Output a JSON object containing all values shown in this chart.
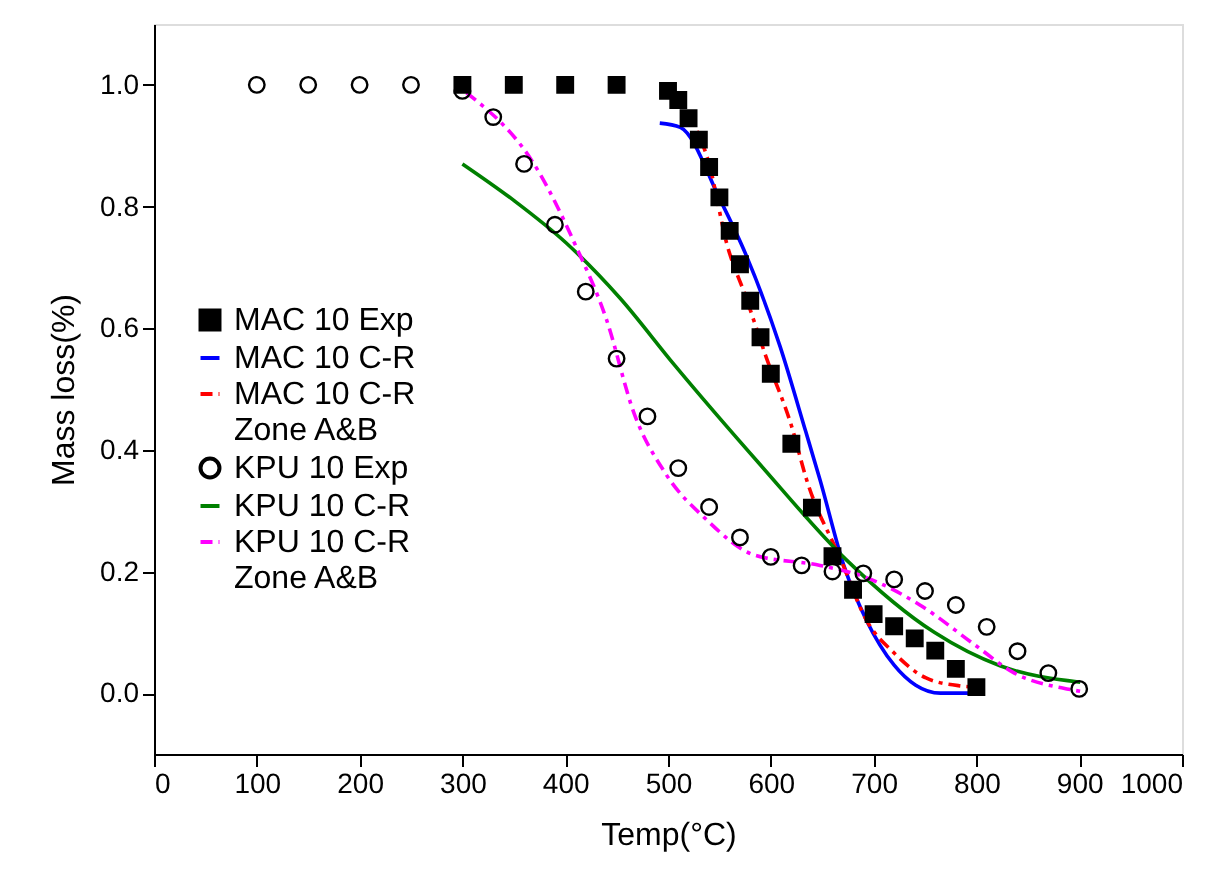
{
  "chart_data": {
    "type": "scatter",
    "xlabel": "Temp(°C)",
    "ylabel": "Mass loss(%)",
    "xlim": [
      0,
      1000
    ],
    "xticks": [
      0,
      100,
      200,
      300,
      400,
      500,
      600,
      700,
      800,
      900,
      1000
    ],
    "ylim": [
      -0.1,
      1.1
    ],
    "yticks": [
      {
        "value": 0,
        "label": "0.0"
      },
      {
        "value": 0.2,
        "label": "0.2"
      },
      {
        "value": 0.4,
        "label": "0.4"
      },
      {
        "value": 0.6,
        "label": "0.6"
      },
      {
        "value": 0.8,
        "label": "0.8"
      },
      {
        "value": 1,
        "label": "1.0"
      }
    ],
    "grid": false,
    "legend": "bottom left",
    "series": [
      {
        "name": "MAC 10 Exp",
        "marker": "square",
        "color": "#000000",
        "x": [
          300,
          350,
          400,
          450,
          500,
          510,
          520,
          530,
          540,
          550,
          560,
          570,
          580,
          590,
          600,
          620,
          640,
          660,
          680,
          700,
          720,
          740,
          760,
          780,
          800
        ],
        "values": [
          1.0,
          1.0,
          1.0,
          1.0,
          0.99,
          0.975,
          0.945,
          0.91,
          0.865,
          0.815,
          0.76,
          0.705,
          0.645,
          0.585,
          0.525,
          0.41,
          0.305,
          0.225,
          0.17,
          0.13,
          0.11,
          0.09,
          0.07,
          0.04,
          0.01
        ]
      },
      {
        "name": "MAC 10 C-R",
        "type": "line",
        "line_style": "solid",
        "marker": "none",
        "color": "#0000ff",
        "x": [
          492,
          512,
          551,
          576,
          609,
          634,
          648,
          671,
          693,
          720,
          741,
          765,
          798
        ],
        "values": [
          0.937,
          0.93,
          0.81,
          0.72,
          0.57,
          0.43,
          0.35,
          0.21,
          0.12,
          0.046,
          0.013,
          0.0,
          0.0
        ]
      },
      {
        "name": "MAC 10 C-R\nZone A&B",
        "type": "line",
        "line_style": "dashed",
        "marker": "none",
        "color": "#ff0000",
        "x": [
          520,
          540,
          557,
          576,
          596,
          620,
          635,
          668,
          693,
          720,
          751,
          784,
          800
        ],
        "values": [
          0.95,
          0.87,
          0.74,
          0.65,
          0.55,
          0.44,
          0.35,
          0.22,
          0.12,
          0.066,
          0.025,
          0.012,
          0.01
        ]
      },
      {
        "name": "KPU 10 Exp",
        "marker": "circle",
        "color": "#000000",
        "x": [
          100,
          150,
          200,
          250,
          300,
          330,
          360,
          390,
          420,
          450,
          480,
          510,
          540,
          570,
          600,
          630,
          660,
          690,
          720,
          750,
          780,
          810,
          840,
          870,
          900
        ],
        "values": [
          1.0,
          1.0,
          1.0,
          1.0,
          0.99,
          0.947,
          0.87,
          0.77,
          0.66,
          0.55,
          0.455,
          0.37,
          0.306,
          0.256,
          0.224,
          0.21,
          0.2,
          0.197,
          0.187,
          0.168,
          0.145,
          0.109,
          0.069,
          0.033,
          0.007
        ]
      },
      {
        "name": "KPU 10 C-R",
        "type": "line",
        "line_style": "solid",
        "marker": "none",
        "color": "#008000",
        "x": [
          300,
          350,
          401,
          453,
          506,
          590,
          673,
          759,
          823,
          901
        ],
        "values": [
          0.87,
          0.81,
          0.74,
          0.65,
          0.54,
          0.375,
          0.22,
          0.1,
          0.045,
          0.018
        ]
      },
      {
        "name": "KPU 10 C-R\nZone A&B",
        "type": "line",
        "line_style": "dashed",
        "marker": "none",
        "color": "#ff00ff",
        "x": [
          304,
          375,
          409,
          440,
          467,
          498,
          537,
          584,
          648,
          693,
          745,
          798,
          837,
          888,
          901
        ],
        "values": [
          0.987,
          0.855,
          0.74,
          0.615,
          0.46,
          0.36,
          0.286,
          0.227,
          0.21,
          0.19,
          0.145,
          0.08,
          0.033,
          0.007,
          0.003
        ]
      }
    ]
  }
}
